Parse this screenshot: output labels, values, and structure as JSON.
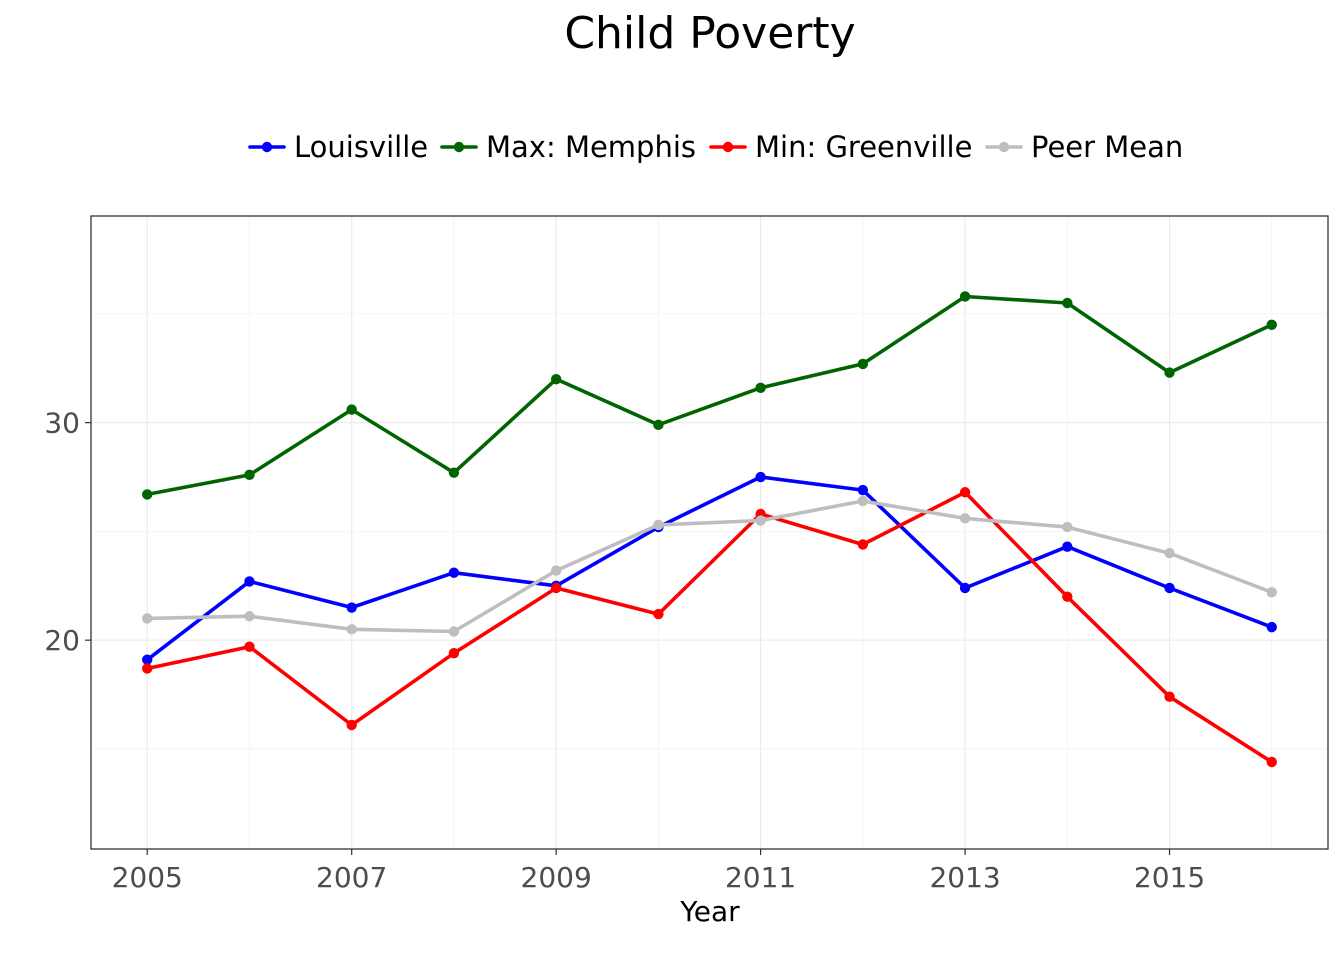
{
  "chart_data": {
    "type": "line",
    "title": "Child Poverty",
    "xlabel": "Year",
    "ylabel": "",
    "x": [
      2005,
      2006,
      2007,
      2008,
      2009,
      2010,
      2011,
      2012,
      2013,
      2014,
      2015,
      2016
    ],
    "xlim": [
      2004.45,
      2016.55
    ],
    "ylim": [
      10.4,
      39.5
    ],
    "x_ticks": [
      2005,
      2007,
      2009,
      2011,
      2013,
      2015
    ],
    "x_tick_labels": [
      "2005",
      "2007",
      "2009",
      "2011",
      "2013",
      "2015"
    ],
    "y_ticks": [
      20,
      30
    ],
    "y_tick_labels": [
      "20",
      "30"
    ],
    "y_minor_gridlines": [
      15,
      25,
      35
    ],
    "grid": true,
    "legend_position": "top",
    "series": [
      {
        "name": "Louisville",
        "color": "#0000ff",
        "values": [
          19.1,
          22.7,
          21.5,
          23.1,
          22.5,
          25.2,
          27.5,
          26.9,
          22.4,
          24.3,
          22.4,
          20.6
        ]
      },
      {
        "name": "Max: Memphis",
        "color": "#006400",
        "values": [
          26.7,
          27.6,
          30.6,
          27.7,
          32.0,
          29.9,
          31.6,
          32.7,
          35.8,
          35.5,
          32.3,
          34.5
        ]
      },
      {
        "name": "Min: Greenville",
        "color": "#ff0000",
        "values": [
          18.7,
          19.7,
          16.1,
          19.4,
          22.4,
          21.2,
          25.8,
          24.4,
          26.8,
          22.0,
          17.4,
          14.4
        ]
      },
      {
        "name": "Peer Mean",
        "color": "#bebebe",
        "values": [
          21.0,
          21.1,
          20.5,
          20.4,
          23.2,
          25.3,
          25.5,
          26.4,
          25.6,
          25.2,
          24.0,
          22.2
        ]
      }
    ]
  }
}
